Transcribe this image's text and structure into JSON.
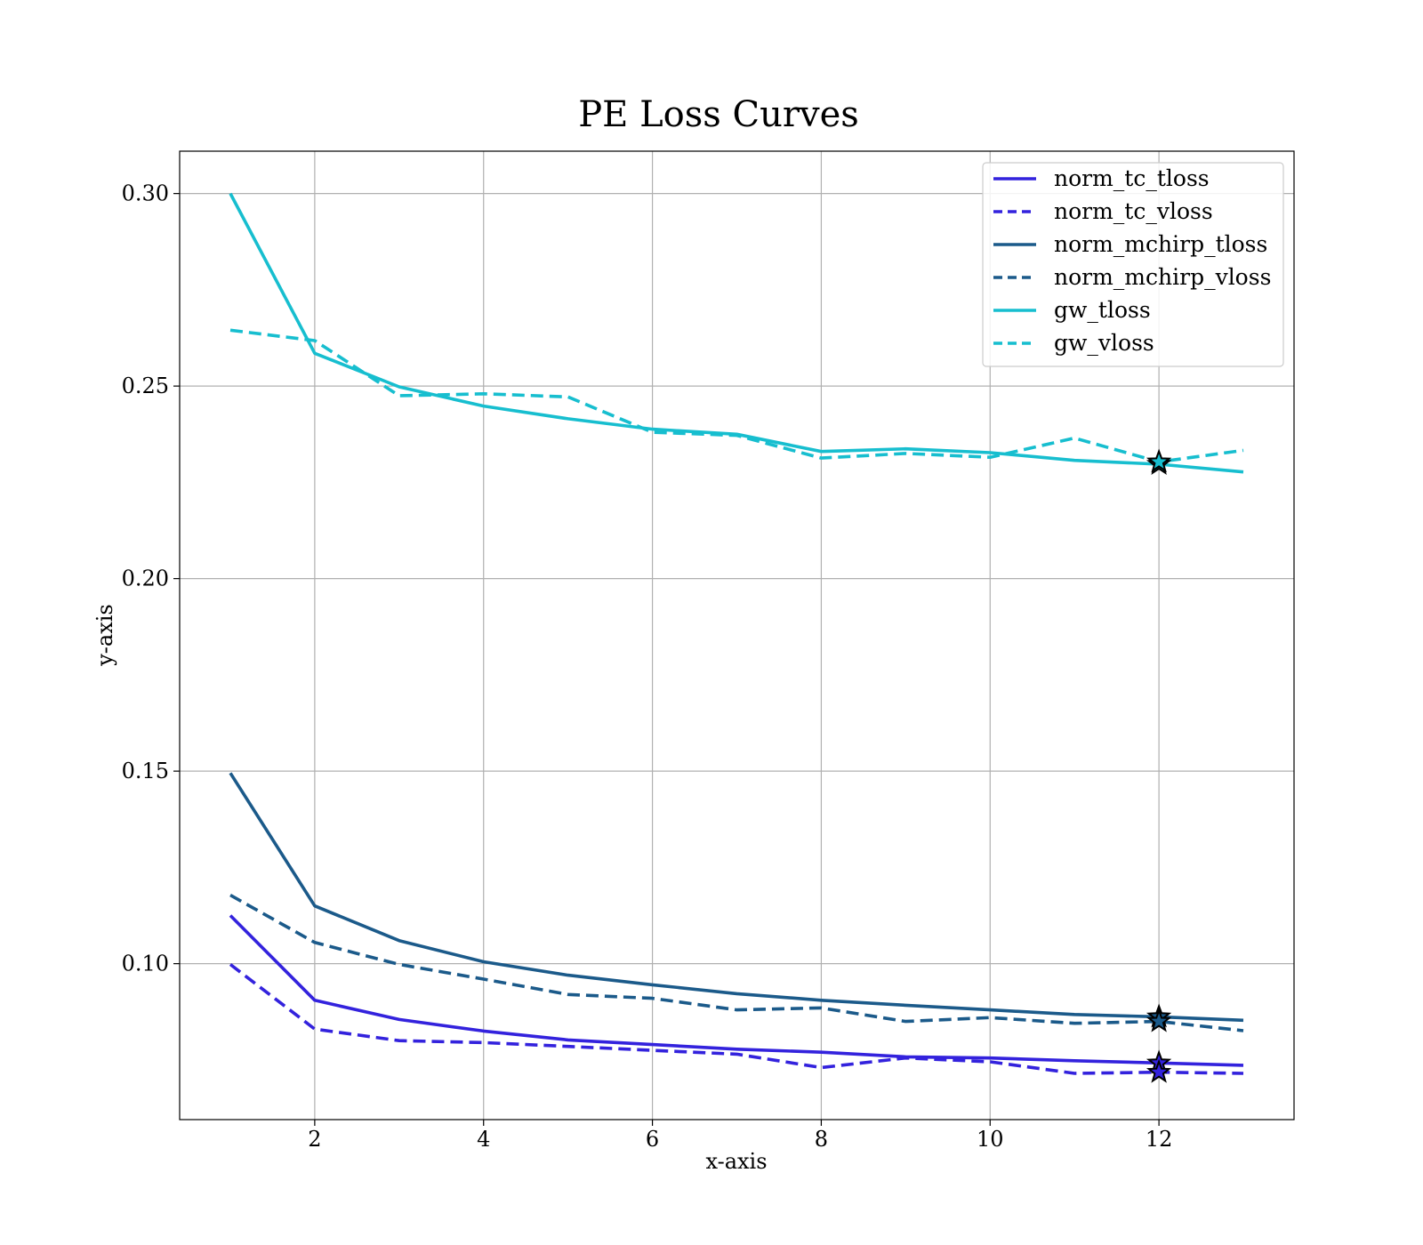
{
  "chart_data": {
    "type": "line",
    "title": "PE Loss Curves",
    "xlabel": "x-axis",
    "ylabel": "y-axis",
    "xlim": [
      0.4,
      13.6
    ],
    "ylim": [
      0.0595,
      0.311
    ],
    "xticks": [
      2,
      4,
      6,
      8,
      10,
      12
    ],
    "yticks": [
      0.1,
      0.15,
      0.2,
      0.25,
      0.3
    ],
    "xtick_labels": [
      "2",
      "4",
      "6",
      "8",
      "10",
      "12"
    ],
    "ytick_labels": [
      "0.10",
      "0.15",
      "0.20",
      "0.25",
      "0.30"
    ],
    "grid": true,
    "legend_position": "upper right",
    "x": [
      1,
      2,
      3,
      4,
      5,
      6,
      7,
      8,
      9,
      10,
      11,
      12,
      13
    ],
    "series": [
      {
        "name": "norm_tc_tloss",
        "color": "#3322dd",
        "dash": "solid",
        "values": [
          0.1125,
          0.0905,
          0.0855,
          0.0825,
          0.0802,
          0.079,
          0.0778,
          0.077,
          0.0758,
          0.0755,
          0.0748,
          0.0742,
          0.0736
        ]
      },
      {
        "name": "norm_tc_vloss",
        "color": "#3322dd",
        "dash": "dashed",
        "values": [
          0.0998,
          0.083,
          0.08,
          0.0795,
          0.0785,
          0.0775,
          0.0765,
          0.073,
          0.0755,
          0.0745,
          0.0715,
          0.0718,
          0.0715
        ]
      },
      {
        "name": "norm_mchirp_tloss",
        "color": "#1b5a8a",
        "dash": "solid",
        "values": [
          0.1495,
          0.115,
          0.106,
          0.1005,
          0.097,
          0.0945,
          0.0922,
          0.0905,
          0.0892,
          0.088,
          0.0868,
          0.0862,
          0.0853
        ]
      },
      {
        "name": "norm_mchirp_vloss",
        "color": "#1b5a8a",
        "dash": "dashed",
        "values": [
          0.1178,
          0.1055,
          0.0998,
          0.096,
          0.092,
          0.091,
          0.088,
          0.0885,
          0.085,
          0.086,
          0.0845,
          0.085,
          0.0826
        ]
      },
      {
        "name": "gw_tloss",
        "color": "#17becf",
        "dash": "solid",
        "values": [
          0.3,
          0.2585,
          0.2498,
          0.2448,
          0.2415,
          0.2388,
          0.2375,
          0.233,
          0.2337,
          0.2327,
          0.2307,
          0.2297,
          0.2277
        ]
      },
      {
        "name": "gw_vloss",
        "color": "#17becf",
        "dash": "dashed",
        "values": [
          0.2645,
          0.2618,
          0.2475,
          0.248,
          0.2472,
          0.238,
          0.2372,
          0.2313,
          0.2325,
          0.2315,
          0.2365,
          0.2303,
          0.2333
        ]
      }
    ],
    "markers": [
      {
        "series": "norm_tc_tloss",
        "x": 12,
        "y": 0.0742,
        "shape": "star"
      },
      {
        "series": "norm_tc_vloss",
        "x": 12,
        "y": 0.0718,
        "shape": "star"
      },
      {
        "series": "norm_mchirp_tloss",
        "x": 12,
        "y": 0.0862,
        "shape": "star"
      },
      {
        "series": "norm_mchirp_vloss",
        "x": 12,
        "y": 0.085,
        "shape": "star"
      },
      {
        "series": "gw_tloss",
        "x": 12,
        "y": 0.2297,
        "shape": "star"
      },
      {
        "series": "gw_vloss",
        "x": 12,
        "y": 0.2303,
        "shape": "star"
      }
    ]
  }
}
